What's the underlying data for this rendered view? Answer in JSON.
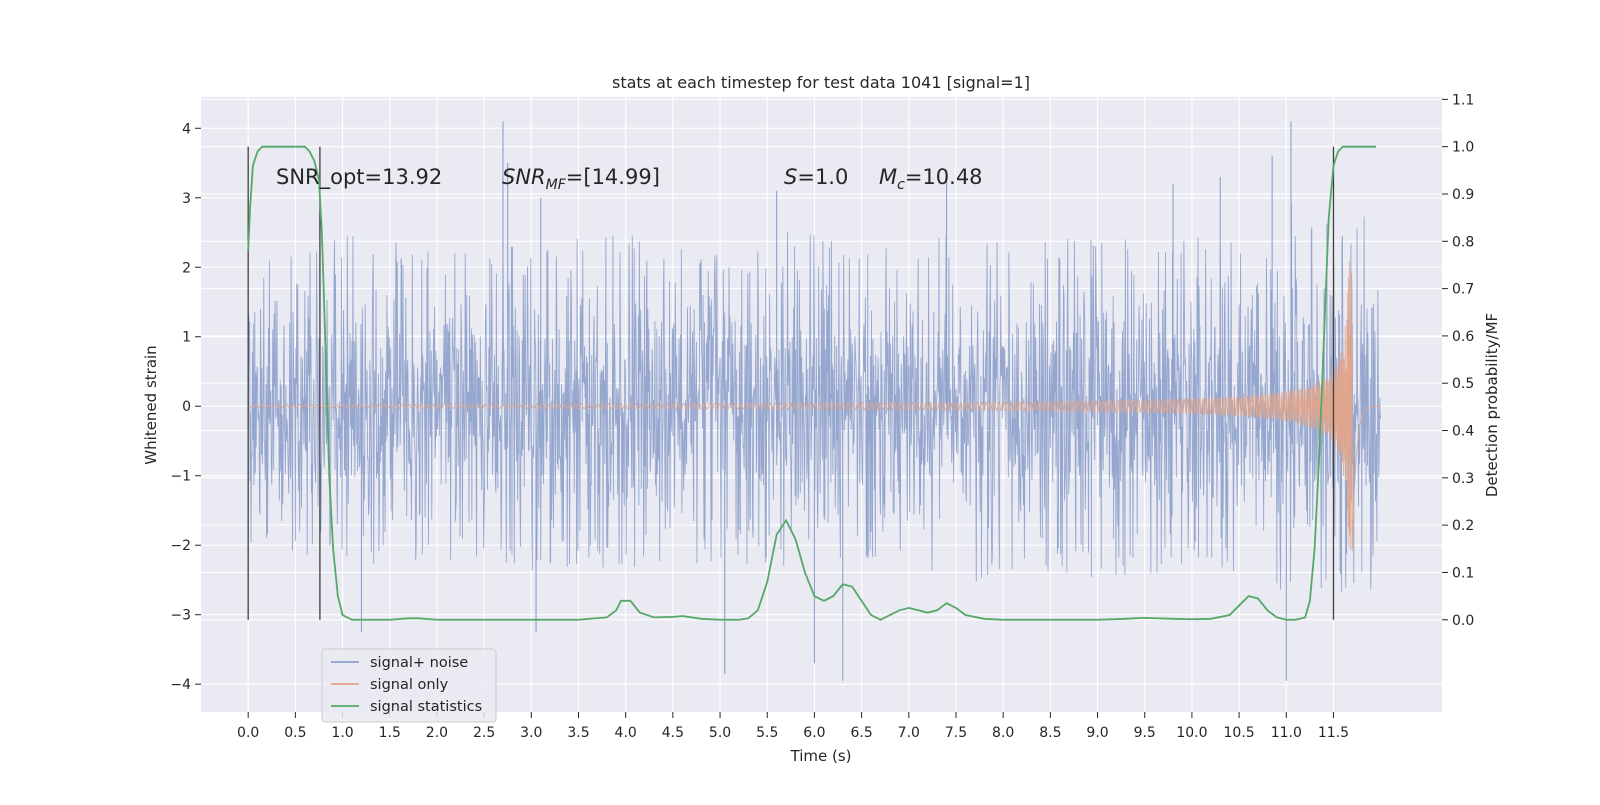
{
  "chart_data": {
    "type": "line",
    "title": "stats at each timestep for test data 1041 [signal=1]",
    "xlabel": "Time (s)",
    "ylabel": "Whitened strain",
    "y2label": "Detection probability/MF",
    "xlim": [
      -0.5,
      12.65
    ],
    "ylim": [
      -4.4,
      4.45
    ],
    "y2lim": [
      -0.195,
      1.105
    ],
    "x_ticks": [
      "0.0",
      "0.5",
      "1.0",
      "1.5",
      "2.0",
      "2.5",
      "3.0",
      "3.5",
      "4.0",
      "4.5",
      "5.0",
      "5.5",
      "6.0",
      "6.5",
      "7.0",
      "7.5",
      "8.0",
      "8.5",
      "9.0",
      "9.5",
      "10.0",
      "10.5",
      "11.0",
      "11.5"
    ],
    "y_ticks": [
      "−4",
      "−3",
      "−2",
      "−1",
      "0",
      "1",
      "2",
      "3",
      "4"
    ],
    "y2_ticks": [
      "0.0",
      "0.1",
      "0.2",
      "0.3",
      "0.4",
      "0.5",
      "0.6",
      "0.7",
      "0.8",
      "0.9",
      "1.0",
      "1.1"
    ],
    "grid": true,
    "legend_position": "lower-left",
    "colors": {
      "background": "#eaeaf2",
      "grid": "#ffffff",
      "noise": "#8da0cb",
      "signal": "#e0a48a",
      "statistics": "#55a868",
      "marker": "#404040"
    },
    "annotations": {
      "snr_opt": "SNR_opt=13.92",
      "snr_mf_sym": "SNR",
      "snr_mf_sub": "MF",
      "snr_mf_val": "=[14.99]",
      "s_sym": "S",
      "s_val": "=1.0",
      "mc_sym": "M",
      "mc_sub": "c",
      "mc_val": "=10.48"
    },
    "vertical_markers": [
      0.0,
      0.76,
      11.5
    ],
    "series": [
      {
        "name": "signal+ noise",
        "kind": "noise",
        "axis": "left",
        "duration": 12.0,
        "sigma": 1.0,
        "envelope_max": [
          2.0,
          2.3,
          2.5,
          2.3,
          2.4,
          2.3,
          2.4,
          2.5,
          2.3,
          2.2,
          2.6,
          2.4,
          2.3,
          2.5,
          2.4,
          2.4,
          2.6,
          2.5,
          2.5,
          3.0,
          2.8,
          2.7
        ],
        "envelope_min": [
          -2.1,
          -2.2,
          -2.3,
          -2.3,
          -2.2,
          -2.4,
          -2.3,
          -2.4,
          -2.2,
          -2.5,
          -2.6,
          -2.3,
          -2.4,
          -2.6,
          -2.5,
          -2.4,
          -2.5,
          -2.4,
          -2.3,
          -2.7,
          -2.8,
          -2.6
        ],
        "spikes": [
          [
            2.7,
            4.1
          ],
          [
            2.75,
            3.5
          ],
          [
            3.1,
            3.0
          ],
          [
            5.6,
            3.1
          ],
          [
            5.05,
            -3.85
          ],
          [
            6.3,
            -3.95
          ],
          [
            7.4,
            3.4
          ],
          [
            11.05,
            4.1
          ],
          [
            11.0,
            -3.95
          ],
          [
            10.3,
            3.3
          ],
          [
            10.85,
            3.6
          ],
          [
            9.8,
            3.2
          ],
          [
            6.0,
            -3.7
          ],
          [
            3.05,
            -3.25
          ],
          [
            1.2,
            -3.25
          ]
        ]
      },
      {
        "name": "signal only",
        "kind": "chirp",
        "axis": "left",
        "t_merger": 11.7,
        "peak_amplitude": 2.1,
        "duration": 12.0
      },
      {
        "name": "signal statistics",
        "kind": "line",
        "axis": "right",
        "x": [
          0.0,
          0.02,
          0.05,
          0.1,
          0.15,
          0.2,
          0.3,
          0.4,
          0.5,
          0.6,
          0.65,
          0.7,
          0.75,
          0.78,
          0.8,
          0.83,
          0.86,
          0.9,
          0.95,
          1.0,
          1.1,
          1.5,
          1.7,
          1.8,
          2.0,
          2.5,
          3.0,
          3.5,
          3.8,
          3.9,
          3.95,
          4.05,
          4.15,
          4.3,
          4.5,
          4.6,
          4.8,
          5.0,
          5.2,
          5.3,
          5.4,
          5.5,
          5.6,
          5.7,
          5.8,
          5.9,
          6.0,
          6.1,
          6.2,
          6.3,
          6.4,
          6.5,
          6.6,
          6.7,
          6.8,
          6.9,
          7.0,
          7.1,
          7.2,
          7.3,
          7.4,
          7.5,
          7.6,
          7.8,
          8.0,
          8.5,
          9.0,
          9.3,
          9.5,
          9.8,
          10.0,
          10.2,
          10.4,
          10.5,
          10.6,
          10.7,
          10.8,
          10.9,
          11.0,
          11.1,
          11.2,
          11.25,
          11.3,
          11.35,
          11.4,
          11.45,
          11.5,
          11.55,
          11.6,
          11.65,
          11.7,
          11.8,
          11.9,
          11.95
        ],
        "y": [
          0.78,
          0.87,
          0.96,
          0.99,
          1.0,
          1.0,
          1.0,
          1.0,
          1.0,
          1.0,
          0.99,
          0.97,
          0.93,
          0.82,
          0.7,
          0.5,
          0.3,
          0.15,
          0.05,
          0.01,
          0.0,
          0.0,
          0.003,
          0.003,
          0.0,
          0.0,
          0.0,
          0.0,
          0.005,
          0.02,
          0.04,
          0.04,
          0.015,
          0.005,
          0.006,
          0.008,
          0.002,
          0.0,
          0.0,
          0.003,
          0.02,
          0.08,
          0.18,
          0.21,
          0.17,
          0.1,
          0.05,
          0.04,
          0.05,
          0.075,
          0.07,
          0.04,
          0.01,
          0.0,
          0.01,
          0.02,
          0.025,
          0.02,
          0.015,
          0.02,
          0.035,
          0.025,
          0.01,
          0.002,
          0.0,
          0.0,
          0.0,
          0.002,
          0.004,
          0.002,
          0.001,
          0.002,
          0.01,
          0.03,
          0.05,
          0.045,
          0.02,
          0.005,
          0.0,
          0.0,
          0.005,
          0.04,
          0.15,
          0.35,
          0.6,
          0.85,
          0.96,
          0.99,
          1.0,
          1.0,
          1.0,
          1.0,
          1.0,
          1.0
        ]
      }
    ]
  }
}
